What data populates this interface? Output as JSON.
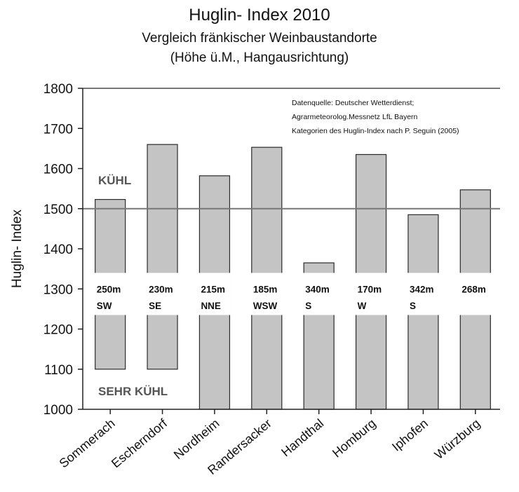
{
  "chart_data": {
    "type": "bar",
    "title": "Huglin- Index 2010",
    "subtitle_line1": "Vergleich fränkischer Weinbaustandorte",
    "subtitle_line2": "(Höhe ü.M., Hangausrichtung)",
    "ylabel": "Huglin- Index",
    "ylim": [
      1000,
      1800
    ],
    "yticks": [
      "1000",
      "1100",
      "1200",
      "1300",
      "1400",
      "1500",
      "1600",
      "1700",
      "1800"
    ],
    "categories": [
      "Sommerach",
      "Escherndorf",
      "Nordheim",
      "Randersacker",
      "Handthal",
      "Homburg",
      "Iphofen",
      "Würzburg"
    ],
    "values": [
      1523,
      1660,
      1582,
      1653,
      1365,
      1635,
      1485,
      1547
    ],
    "bar_bottoms": [
      1100,
      1100,
      1000,
      1000,
      1000,
      1000,
      1000,
      1000
    ],
    "site_altitude": [
      "250m",
      "230m",
      "215m",
      "185m",
      "340m",
      "170m",
      "342m",
      "268m"
    ],
    "site_aspect": [
      "SW",
      "SE",
      "NNE",
      "WSW",
      "S",
      "W",
      "S",
      ""
    ],
    "reference_line": 1500,
    "categories_text": {
      "upper": "KÜHL",
      "lower": "SEHR KÜHL"
    },
    "source_note": [
      "Datenquelle: Deutscher Wetterdienst;",
      "Agrarmeteorolog.Messnetz LfL Bayern",
      "Kategorien des Huglin-Index nach P. Seguin (2005)"
    ],
    "grid": false,
    "legend": "none",
    "colors": {
      "bar": "#c4c4c4",
      "bar_stroke": "#2a2a2a",
      "line": "#777777",
      "category_text": "#555555"
    }
  }
}
